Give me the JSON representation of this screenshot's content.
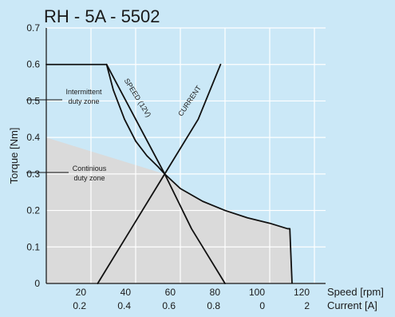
{
  "chart_data": {
    "type": "line",
    "title": "RH - 5A - 5502",
    "ylabel": "Torque [Nm]",
    "x_speed_label": "Speed [rpm]",
    "x_current_label": "Current [A]",
    "speed_ticks": [
      "20",
      "40",
      "60",
      "80",
      "100",
      "120"
    ],
    "current_ticks": [
      "0.2",
      "0.4",
      "0.6",
      "0.8",
      "0",
      "2"
    ],
    "y_ticks": [
      "0",
      "0.1",
      "0.2",
      "0.3",
      "0.4",
      "0.5",
      "0.6",
      "0.7"
    ],
    "xlim": [
      0,
      125
    ],
    "ylim": [
      0,
      0.7
    ],
    "grid": true,
    "annotations": {
      "intermittent_1": "Intermittent",
      "intermittent_2": "duty zone",
      "continuous_1": "Continious",
      "continuous_2": "duty zone",
      "speed_curve": "SPEED (12V)",
      "current_curve": "CURRENT"
    },
    "series": [
      {
        "name": "SPEED (12V)",
        "x": [
          0,
          20,
          27,
          30,
          35,
          40,
          45,
          50,
          53
        ],
        "y": [
          0.6,
          0.6,
          0.6,
          0.53,
          0.45,
          0.39,
          0.35,
          0.32,
          0.3
        ]
      },
      {
        "name": "CURRENT",
        "x": [
          23,
          38,
          53,
          68,
          78
        ],
        "y": [
          0,
          0.15,
          0.3,
          0.45,
          0.6
        ]
      },
      {
        "x": [
          53,
          60,
          70,
          80,
          90,
          100,
          108,
          109
        ],
        "y": [
          0.3,
          0.26,
          0.225,
          0.2,
          0.18,
          0.165,
          0.15,
          0.15
        ]
      },
      {
        "x": [
          27,
          40,
          53,
          65,
          80
        ],
        "y": [
          0.6,
          0.45,
          0.3,
          0.15,
          0
        ]
      }
    ],
    "zones": {
      "intermittent": {
        "x": [
          0,
          27,
          30,
          35,
          40,
          45,
          50,
          53,
          0
        ],
        "y": [
          0.6,
          0.6,
          0.53,
          0.45,
          0.39,
          0.35,
          0.32,
          0.3,
          0.4
        ]
      },
      "continuous": {
        "x": [
          0,
          53,
          60,
          70,
          80,
          90,
          100,
          108,
          109,
          110,
          0
        ],
        "y": [
          0.4,
          0.3,
          0.26,
          0.225,
          0.2,
          0.18,
          0.165,
          0.15,
          0.15,
          0,
          0
        ]
      }
    },
    "colors": {
      "background": "#cbe8f7",
      "plot_area": "#cbe8f7",
      "continuous_zone": "#dadada",
      "grid": "#ffffff",
      "lines": "#111111"
    }
  }
}
